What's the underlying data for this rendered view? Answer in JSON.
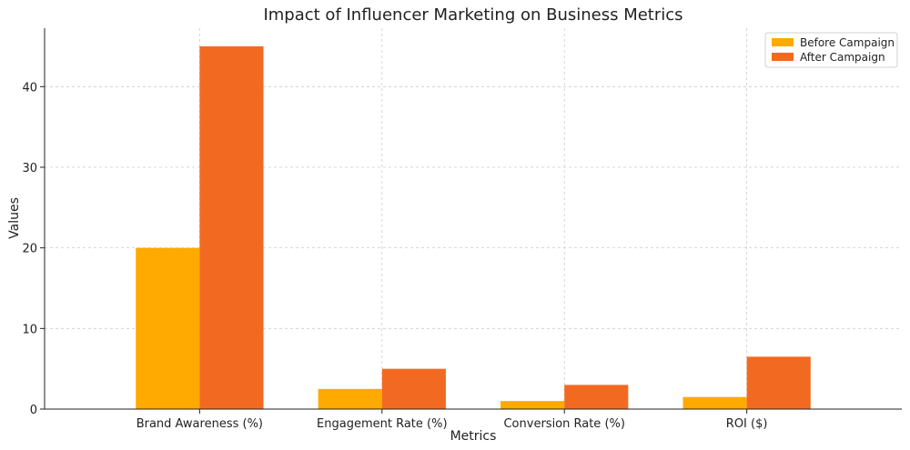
{
  "chart_data": {
    "type": "bar",
    "title": "Impact of Influencer Marketing on Business Metrics",
    "xlabel": "Metrics",
    "ylabel": "Values",
    "categories": [
      "Brand Awareness (%)",
      "Engagement Rate (%)",
      "Conversion Rate (%)",
      "ROI ($)"
    ],
    "series": [
      {
        "name": "Before Campaign",
        "values": [
          20,
          2.5,
          1,
          1.5
        ],
        "color": "#FFAA00"
      },
      {
        "name": "After Campaign",
        "values": [
          45,
          5,
          3,
          6.5
        ],
        "color": "#F26A22"
      }
    ],
    "yticks": [
      0,
      10,
      20,
      30,
      40
    ],
    "ylim": [
      0,
      47.25
    ],
    "grid": true,
    "legend_position": "top-right"
  }
}
